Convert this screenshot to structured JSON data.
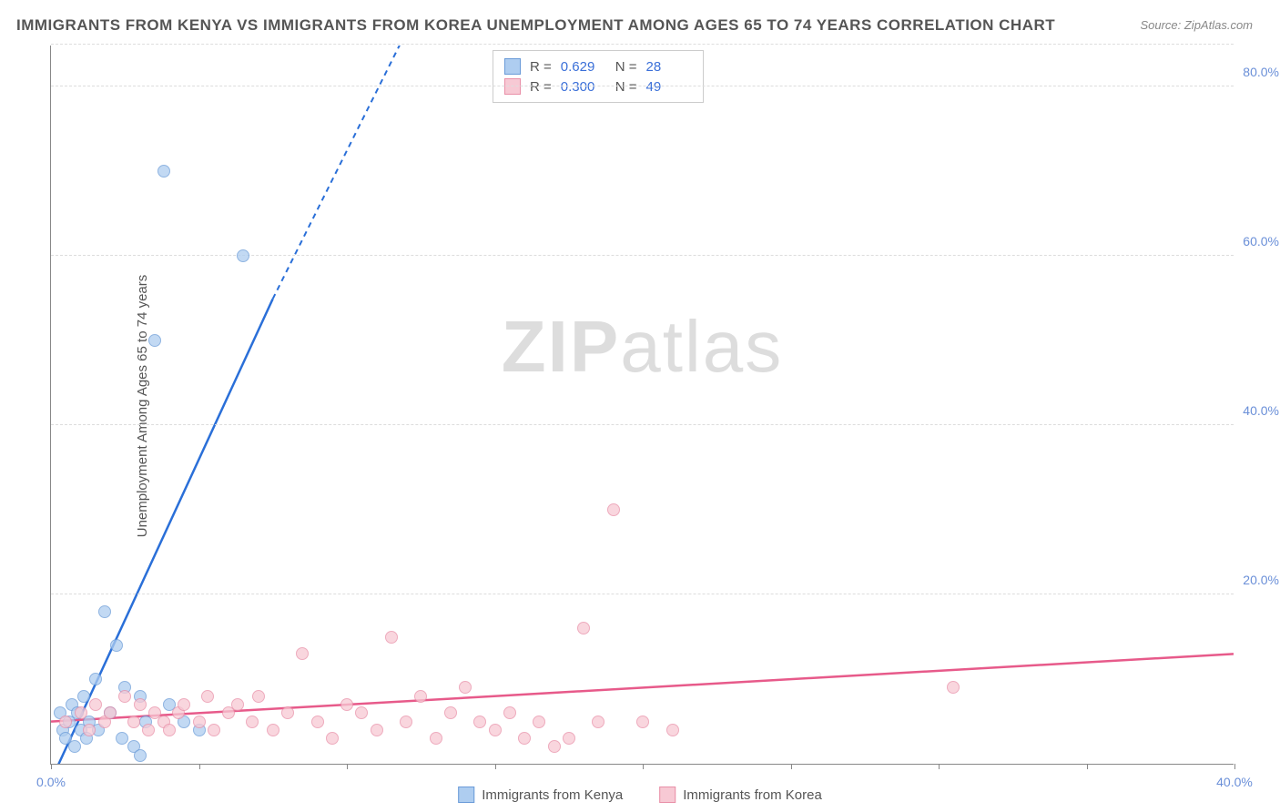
{
  "title": "IMMIGRANTS FROM KENYA VS IMMIGRANTS FROM KOREA UNEMPLOYMENT AMONG AGES 65 TO 74 YEARS CORRELATION CHART",
  "source": "Source: ZipAtlas.com",
  "y_axis_label": "Unemployment Among Ages 65 to 74 years",
  "watermark": {
    "prefix": "ZIP",
    "suffix": "atlas"
  },
  "plot": {
    "x_min": 0,
    "x_max": 40,
    "y_min": 0,
    "y_max": 85,
    "x_ticks": [
      0,
      5,
      10,
      15,
      20,
      25,
      30,
      35,
      40
    ],
    "x_tick_labels": {
      "0": "0.0%",
      "40": "40.0%"
    },
    "y_gridlines": [
      20,
      40,
      60,
      80,
      85
    ],
    "y_tick_labels": {
      "20": "20.0%",
      "40": "40.0%",
      "60": "60.0%",
      "80": "80.0%"
    },
    "grid_color": "#dddddd",
    "axis_color": "#888888",
    "background": "#ffffff"
  },
  "series": [
    {
      "name": "Immigrants from Kenya",
      "key": "kenya",
      "fill": "#aecdf0",
      "stroke": "#6a9bd8",
      "line_color": "#2a6fd8",
      "marker_size": 14,
      "r_value": "0.629",
      "n_value": "28",
      "trend": {
        "x1": 0,
        "y1": -2,
        "x2": 7.5,
        "y2": 55,
        "x2_dash": 12.5,
        "y2_dash": 90
      },
      "points": [
        [
          0.3,
          6
        ],
        [
          0.4,
          4
        ],
        [
          0.5,
          3
        ],
        [
          0.6,
          5
        ],
        [
          0.7,
          7
        ],
        [
          0.8,
          2
        ],
        [
          0.9,
          6
        ],
        [
          1.0,
          4
        ],
        [
          1.1,
          8
        ],
        [
          1.2,
          3
        ],
        [
          1.3,
          5
        ],
        [
          1.5,
          10
        ],
        [
          1.6,
          4
        ],
        [
          1.8,
          18
        ],
        [
          2.0,
          6
        ],
        [
          2.2,
          14
        ],
        [
          2.4,
          3
        ],
        [
          2.5,
          9
        ],
        [
          2.8,
          2
        ],
        [
          3.0,
          8
        ],
        [
          3.2,
          5
        ],
        [
          3.5,
          50
        ],
        [
          3.8,
          70
        ],
        [
          4.0,
          7
        ],
        [
          4.5,
          5
        ],
        [
          5.0,
          4
        ],
        [
          6.5,
          60
        ],
        [
          3.0,
          1
        ]
      ]
    },
    {
      "name": "Immigrants from Korea",
      "key": "korea",
      "fill": "#f7c9d4",
      "stroke": "#e98fa8",
      "line_color": "#e75a8a",
      "marker_size": 14,
      "r_value": "0.300",
      "n_value": "49",
      "trend": {
        "x1": 0,
        "y1": 5,
        "x2": 40,
        "y2": 13
      },
      "points": [
        [
          0.5,
          5
        ],
        [
          1.0,
          6
        ],
        [
          1.3,
          4
        ],
        [
          1.5,
          7
        ],
        [
          1.8,
          5
        ],
        [
          2.0,
          6
        ],
        [
          2.5,
          8
        ],
        [
          2.8,
          5
        ],
        [
          3.0,
          7
        ],
        [
          3.3,
          4
        ],
        [
          3.5,
          6
        ],
        [
          3.8,
          5
        ],
        [
          4.0,
          4
        ],
        [
          4.3,
          6
        ],
        [
          4.5,
          7
        ],
        [
          5.0,
          5
        ],
        [
          5.3,
          8
        ],
        [
          5.5,
          4
        ],
        [
          6.0,
          6
        ],
        [
          6.3,
          7
        ],
        [
          6.8,
          5
        ],
        [
          7.0,
          8
        ],
        [
          7.5,
          4
        ],
        [
          8.0,
          6
        ],
        [
          8.5,
          13
        ],
        [
          9.0,
          5
        ],
        [
          9.5,
          3
        ],
        [
          10.0,
          7
        ],
        [
          10.5,
          6
        ],
        [
          11.0,
          4
        ],
        [
          11.5,
          15
        ],
        [
          12.0,
          5
        ],
        [
          12.5,
          8
        ],
        [
          13.0,
          3
        ],
        [
          13.5,
          6
        ],
        [
          14.0,
          9
        ],
        [
          14.5,
          5
        ],
        [
          15.0,
          4
        ],
        [
          15.5,
          6
        ],
        [
          16.0,
          3
        ],
        [
          16.5,
          5
        ],
        [
          17.0,
          2
        ],
        [
          18.0,
          16
        ],
        [
          18.5,
          5
        ],
        [
          19.0,
          30
        ],
        [
          20.0,
          5
        ],
        [
          21.0,
          4
        ],
        [
          30.5,
          9
        ],
        [
          17.5,
          3
        ]
      ]
    }
  ],
  "stats_box": {
    "r_label": "R  =",
    "n_label": "N  ="
  },
  "bottom_legend": [
    {
      "key": "kenya",
      "label": "Immigrants from Kenya"
    },
    {
      "key": "korea",
      "label": "Immigrants from Korea"
    }
  ]
}
